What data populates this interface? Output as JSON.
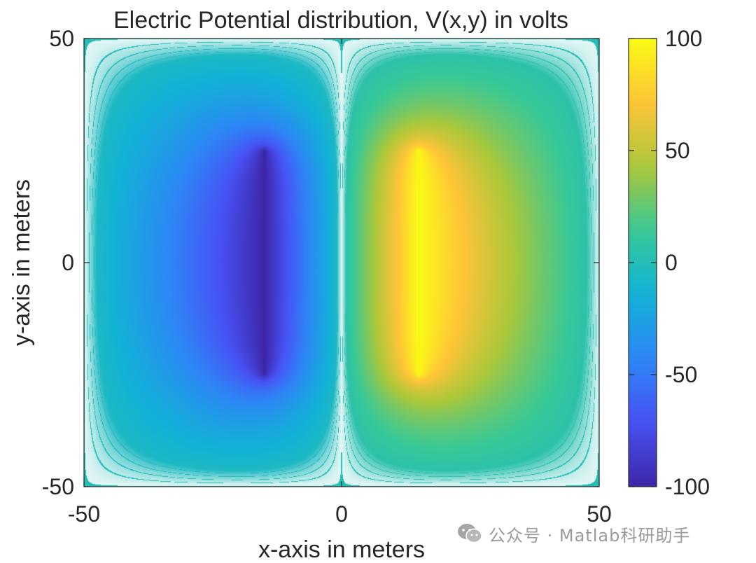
{
  "chart_data": {
    "type": "heatmap",
    "title": "Electric Potential distribution, V(x,y) in volts",
    "xlabel": "x-axis in meters",
    "ylabel": "y-axis in meters",
    "xlim": [
      -50,
      50
    ],
    "ylim": [
      -50,
      50
    ],
    "xticks": [
      -50,
      0,
      50
    ],
    "yticks": [
      -50,
      0,
      50
    ],
    "colorbar": {
      "colormap": "parula",
      "clim": [
        -100,
        100
      ],
      "ticks": [
        100,
        50,
        0,
        -50,
        -100
      ]
    },
    "plates": [
      {
        "name": "negative plate",
        "x": -15,
        "y_range": [
          -25,
          25
        ],
        "potential": -100
      },
      {
        "name": "positive plate",
        "x": 15,
        "y_range": [
          -25,
          25
        ],
        "potential": 100
      }
    ],
    "boundary_potential": 0,
    "grid": false,
    "legend": "none"
  },
  "watermark": {
    "text": "公众号 · Matlab科研助手",
    "icon": "wechat-icon"
  }
}
